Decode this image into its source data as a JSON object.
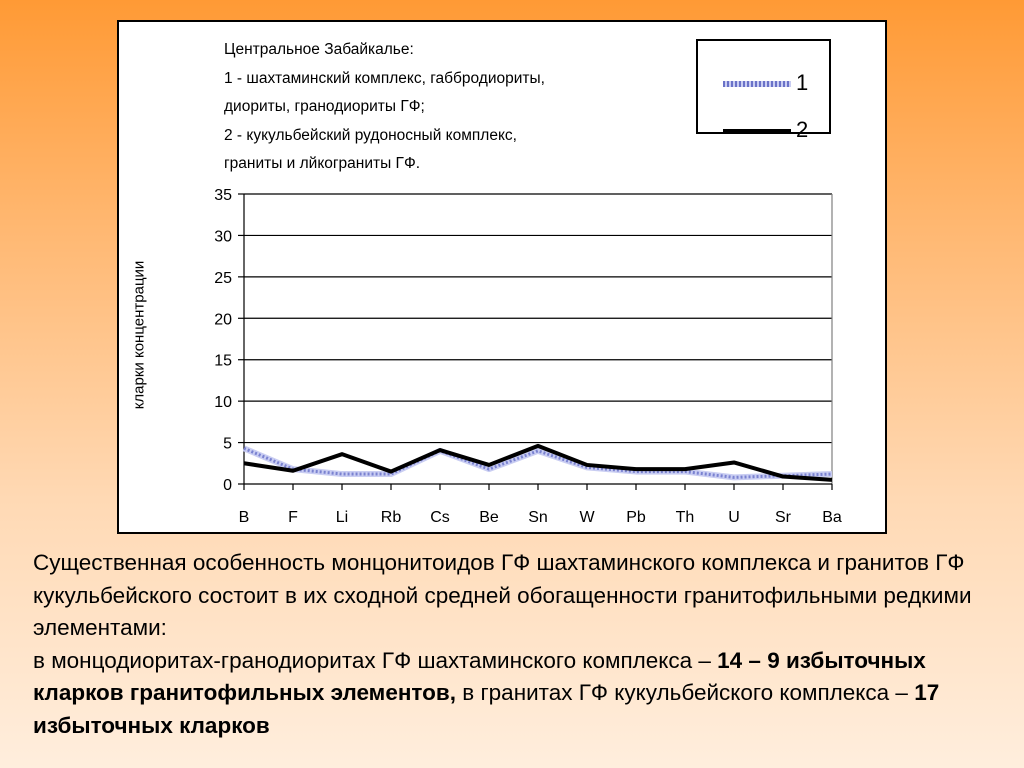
{
  "chart_data": {
    "type": "line",
    "title_lines": [
      "Центральное Забайкалье:",
      "1 - шахтаминский комплекс, габбродиориты,",
      "диориты, гранодиориты ГФ;",
      "2 - кукульбейский рудоносный комплекс,",
      "граниты  и лйкограниты ГФ."
    ],
    "xlabel": "",
    "ylabel": "кларки концентрации",
    "ylim": [
      0,
      35
    ],
    "yticks": [
      0,
      5,
      10,
      15,
      20,
      25,
      30,
      35
    ],
    "grid": true,
    "legend_position": "top-right",
    "categories": [
      "B",
      "F",
      "Li",
      "Rb",
      "Cs",
      "Be",
      "Sn",
      "W",
      "Pb",
      "Th",
      "U",
      "Sr",
      "Ba"
    ],
    "series": [
      {
        "name": "1",
        "color": "#7a82d0",
        "style": "patterned",
        "values": [
          4.3,
          1.8,
          1.2,
          1.2,
          4.0,
          1.8,
          4.0,
          2.0,
          1.5,
          1.5,
          0.8,
          1.0,
          1.2
        ]
      },
      {
        "name": "2",
        "color": "#000000",
        "style": "solid",
        "values": [
          2.5,
          1.6,
          3.6,
          1.5,
          4.1,
          2.3,
          4.6,
          2.3,
          1.8,
          1.8,
          2.6,
          0.9,
          0.5
        ]
      }
    ]
  },
  "text": {
    "p1": "Существенная особенность монцонитоидов ГФ шахтаминского комплекса и гранитов ГФ кукульбейского состоит в их сходной средней обогащенности гранитофильными редкими элементами:",
    "p2_a": "в монцодиоритах-гранодиоритах ГФ шахтаминского комплекса – ",
    "p2_b": "14 – 9 избыточных кларков гранитофильных элементов,",
    "p2_c": " в гранитах ГФ кукульбейского комплекса – ",
    "p2_d": "17 избыточных кларков"
  }
}
